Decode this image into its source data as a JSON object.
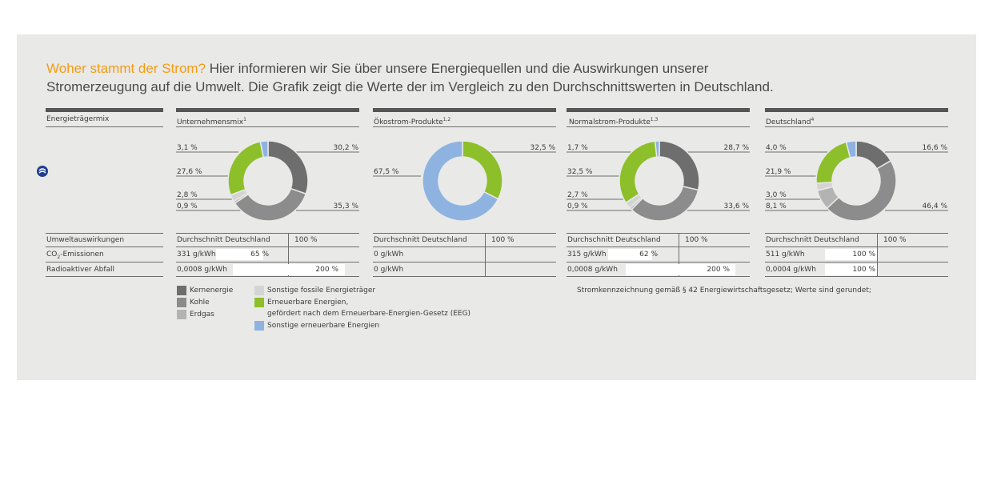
{
  "headline": {
    "highlight": "Woher stammt der Strom?",
    "line1": " Hier informieren wir Sie über unsere Energiequellen und die Auswirkungen unserer",
    "line2": "Stromerzeugung auf die Umwelt. Die Grafik zeigt die Werte der  im Vergleich zu den Durchschnittswerten in Deutschland."
  },
  "labels": {
    "energietraegermix": "Energieträgermix",
    "umweltauswirkungen": "Umweltauswirkungen",
    "co2": "CO",
    "co2_sub": "2",
    "co2_rest": "-Emissionen",
    "abfall": "Radioaktiver Abfall",
    "durchschnitt": "Durchschnitt Deutschland",
    "hundert": "100 %",
    "footnote": "Stromkennzeichnung gemäß § 42 Energiewirtschaftsgesetz; Werte sind gerundet;"
  },
  "colors": {
    "kernenergie": "#6e6e6e",
    "kohle": "#8c8c8c",
    "erdgas": "#b3b3b3",
    "sonstige_fossile": "#d4d4d4",
    "erneuerbare_eeg": "#8dbf2a",
    "sonstige_erneuerbare": "#8fb3e0"
  },
  "legend": [
    {
      "label": "Kernenergie",
      "color": "#6e6e6e",
      "icon": "square-swatch"
    },
    {
      "label": "Kohle",
      "color": "#8c8c8c",
      "icon": "square-swatch"
    },
    {
      "label": "Erdgas",
      "color": "#b3b3b3",
      "icon": "square-swatch"
    },
    {
      "label": "Sonstige fossile Energieträger",
      "color": "#d4d4d4",
      "icon": "square-swatch"
    },
    {
      "label": "Erneuerbare Energien,",
      "label2": "gefördert nach dem Erneuerbare-Energien-Gesetz (EEG)",
      "color": "#8dbf2a",
      "icon": "square-swatch"
    },
    {
      "label": "Sonstige erneuerbare Energien",
      "color": "#8fb3e0",
      "icon": "square-swatch"
    }
  ],
  "columns": [
    {
      "title": "Unternehmensmix",
      "sup": "1",
      "co2": "331 g/kWh",
      "co2_pct": "65 %",
      "co2_frac": 0.65,
      "abfall": "0,0008 g/kWh",
      "abfall_pct": "200 %",
      "abfall_frac": 1.0
    },
    {
      "title": "Ökostrom-Produkte",
      "sup": "1,2",
      "co2": "0 g/kWh",
      "co2_pct": "",
      "co2_frac": 0,
      "abfall": "0 g/kWh",
      "abfall_pct": "",
      "abfall_frac": 0
    },
    {
      "title": "Normalstrom-Produkte",
      "sup": "1,3",
      "co2": "315 g/kWh",
      "co2_pct": "62 %",
      "co2_frac": 0.62,
      "abfall": "0,0008 g/kWh",
      "abfall_pct": "200 %",
      "abfall_frac": 1.0
    },
    {
      "title": "Deutschland",
      "sup": "4",
      "co2": "511 g/kWh",
      "co2_pct": "100 %",
      "co2_frac": 1.0,
      "abfall": "0,0004 g/kWh",
      "abfall_pct": "100 %",
      "abfall_frac": 1.0
    }
  ],
  "chart_data": [
    {
      "type": "pie",
      "title": "Unternehmensmix",
      "categories": [
        "Kernenergie",
        "Kohle",
        "Erdgas",
        "Sonstige fossile Energieträger",
        "Erneuerbare Energien (EEG)",
        "Sonstige erneuerbare Energien"
      ],
      "values": [
        30.2,
        35.3,
        0.9,
        2.8,
        27.6,
        3.1
      ],
      "value_labels": [
        "30,2 %",
        "35,3 %",
        "0,9 %",
        "2,8 %",
        "27,6 %",
        "3,1 %"
      ]
    },
    {
      "type": "pie",
      "title": "Ökostrom-Produkte",
      "categories": [
        "Erneuerbare Energien (EEG)",
        "Sonstige erneuerbare Energien"
      ],
      "values": [
        32.5,
        67.5
      ],
      "value_labels": [
        "32,5 %",
        "67,5 %"
      ]
    },
    {
      "type": "pie",
      "title": "Normalstrom-Produkte",
      "categories": [
        "Kernenergie",
        "Kohle",
        "Erdgas",
        "Sonstige fossile Energieträger",
        "Erneuerbare Energien (EEG)",
        "Sonstige erneuerbare Energien"
      ],
      "values": [
        28.7,
        33.6,
        0.9,
        2.7,
        32.5,
        1.7
      ],
      "value_labels": [
        "28,7 %",
        "33,6 %",
        "0,9 %",
        "2,7 %",
        "32,5 %",
        "1,7 %"
      ]
    },
    {
      "type": "pie",
      "title": "Deutschland",
      "categories": [
        "Kernenergie",
        "Kohle",
        "Erdgas",
        "Sonstige fossile Energieträger",
        "Erneuerbare Energien (EEG)",
        "Sonstige erneuerbare Energien"
      ],
      "values": [
        16.6,
        46.4,
        8.1,
        3.0,
        21.9,
        4.0
      ],
      "value_labels": [
        "16,6 %",
        "46,4 %",
        "8,1 %",
        "3,0 %",
        "21,9 %",
        "4,0 %"
      ]
    }
  ]
}
